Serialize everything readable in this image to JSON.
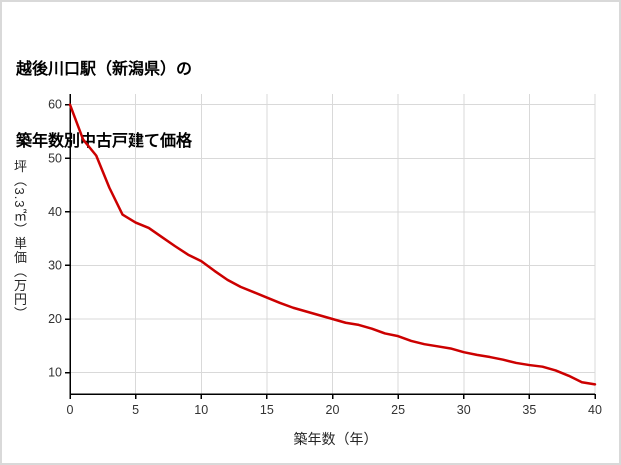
{
  "page": {
    "background": "#ffffff",
    "border_color": "#d9d9d9"
  },
  "chart_data": {
    "type": "line",
    "title": "越後川口駅（新潟県）の築年数別中古戸建て価格",
    "title_lines": [
      "越後川口駅（新潟県）の",
      "築年数別中古戸建て価格"
    ],
    "xlabel": "築年数（年）",
    "ylabel": "坪（3.3㎡）単価（万円）",
    "x": [
      0,
      1,
      2,
      3,
      4,
      5,
      6,
      7,
      8,
      9,
      10,
      11,
      12,
      13,
      14,
      15,
      16,
      17,
      18,
      19,
      20,
      21,
      22,
      23,
      24,
      25,
      26,
      27,
      28,
      29,
      30,
      31,
      32,
      33,
      34,
      35,
      36,
      37,
      38,
      39,
      40
    ],
    "values": [
      60,
      53.5,
      50.5,
      44.5,
      39.5,
      38,
      37,
      35.3,
      33.6,
      32,
      30.8,
      29,
      27.3,
      26,
      25,
      24,
      23,
      22.1,
      21.4,
      20.7,
      20,
      19.3,
      18.9,
      18.2,
      17.3,
      16.8,
      15.9,
      15.3,
      14.9,
      14.5,
      13.8,
      13.3,
      12.9,
      12.4,
      11.8,
      11.4,
      11.1,
      10.4,
      9.4,
      8.2,
      7.8
    ],
    "xlim": [
      0,
      40
    ],
    "ylim": [
      6,
      62
    ],
    "xticks": [
      0,
      5,
      10,
      15,
      20,
      25,
      30,
      35,
      40
    ],
    "yticks": [
      10,
      20,
      30,
      40,
      50,
      60
    ],
    "grid": true,
    "legend_position": "none",
    "colors": {
      "line": "#cc0000",
      "grid": "#d9d9d9",
      "axis": "#000000",
      "text": "#333333"
    }
  }
}
